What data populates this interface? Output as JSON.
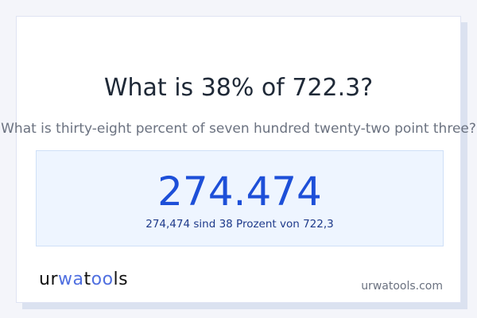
{
  "title": "What is 38% of 722.3?",
  "subtitle": "What is thirty-eight percent of seven hundred twenty-two point three?",
  "result": {
    "value": "274.474",
    "description": "274,474 sind 38 Prozent von 722,3"
  },
  "footer": {
    "logo_text": "urwatools",
    "site": "urwatools.com"
  },
  "colors": {
    "accent": "#1d4fd8",
    "logo_accent": "#4f6fe0"
  }
}
